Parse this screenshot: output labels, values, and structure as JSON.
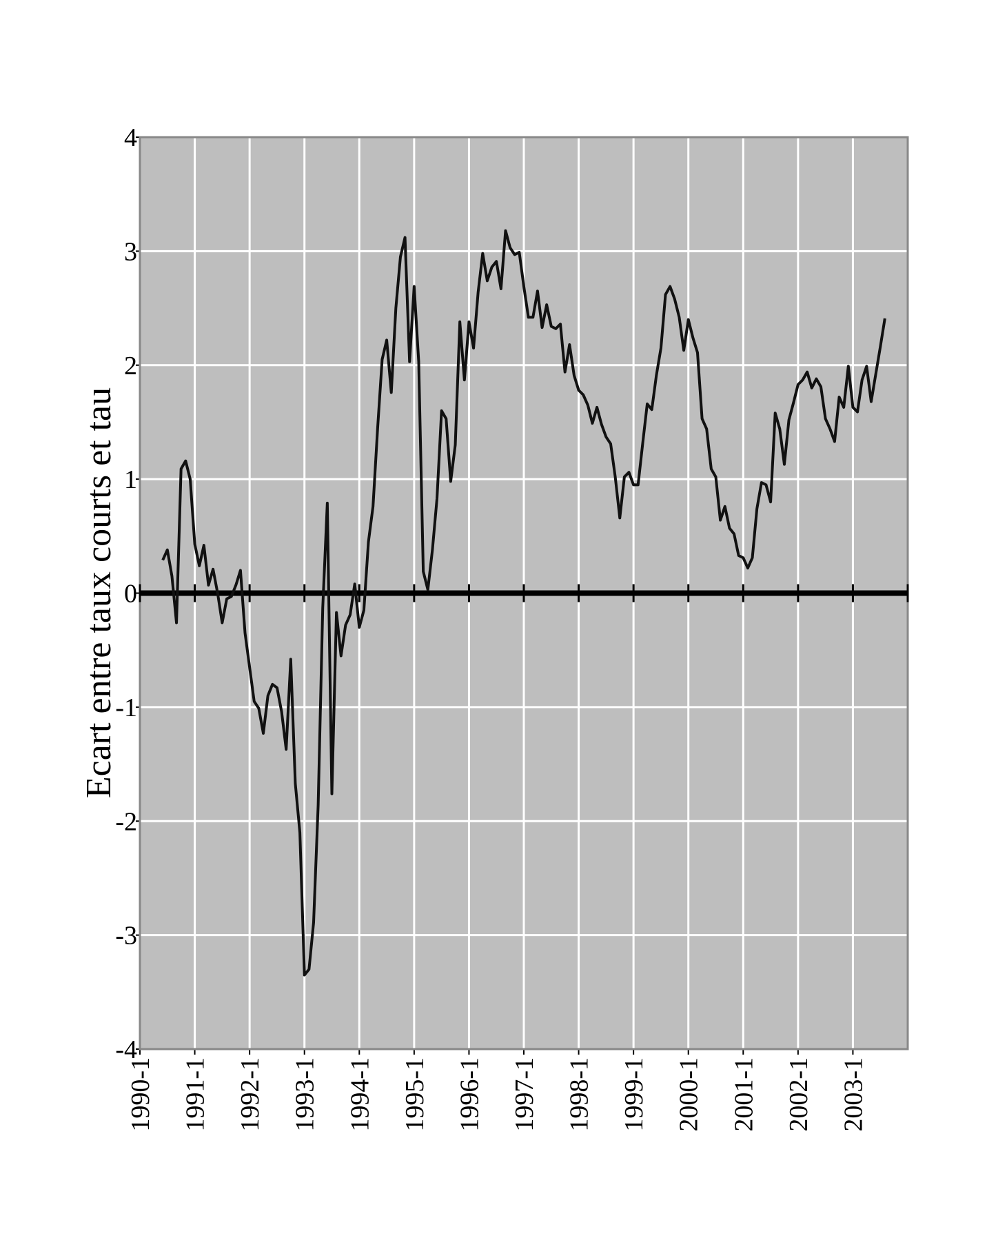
{
  "chart_data": {
    "type": "line",
    "y_label": "Ecart entre taux courts et tau",
    "x": [
      "1990-6",
      "1990-7",
      "1990-8",
      "1990-9",
      "1990-10",
      "1990-11",
      "1990-12",
      "1991-1",
      "1991-2",
      "1991-3",
      "1991-4",
      "1991-5",
      "1991-6",
      "1991-7",
      "1991-8",
      "1991-9",
      "1991-10",
      "1991-11",
      "1991-12",
      "1992-1",
      "1992-2",
      "1992-3",
      "1992-4",
      "1992-5",
      "1992-6",
      "1992-7",
      "1992-8",
      "1992-9",
      "1992-10",
      "1992-11",
      "1992-12",
      "1993-1",
      "1993-2",
      "1993-3",
      "1993-4",
      "1993-5",
      "1993-6",
      "1993-7",
      "1993-8",
      "1993-9",
      "1993-10",
      "1993-11",
      "1993-12",
      "1994-1",
      "1994-2",
      "1994-3",
      "1994-4",
      "1994-5",
      "1994-6",
      "1994-7",
      "1994-8",
      "1994-9",
      "1994-10",
      "1994-11",
      "1994-12",
      "1995-1",
      "1995-2",
      "1995-3",
      "1995-4",
      "1995-5",
      "1995-6",
      "1995-7",
      "1995-8",
      "1995-9",
      "1995-10",
      "1995-11",
      "1995-12",
      "1996-1",
      "1996-2",
      "1996-3",
      "1996-4",
      "1996-5",
      "1996-6",
      "1996-7",
      "1996-8",
      "1996-9",
      "1996-10",
      "1996-11",
      "1996-12",
      "1997-1",
      "1997-2",
      "1997-3",
      "1997-4",
      "1997-5",
      "1997-6",
      "1997-7",
      "1997-8",
      "1997-9",
      "1997-10",
      "1997-11",
      "1997-12",
      "1998-1",
      "1998-2",
      "1998-3",
      "1998-4",
      "1998-5",
      "1998-6",
      "1998-7",
      "1998-8",
      "1998-9",
      "1998-10",
      "1998-11",
      "1998-12",
      "1999-1",
      "1999-2",
      "1999-3",
      "1999-4",
      "1999-5",
      "1999-6",
      "1999-7",
      "1999-8",
      "1999-9",
      "1999-10",
      "1999-11",
      "1999-12",
      "2000-1",
      "2000-2",
      "2000-3",
      "2000-4",
      "2000-5",
      "2000-6",
      "2000-7",
      "2000-8",
      "2000-9",
      "2000-10",
      "2000-11",
      "2000-12",
      "2001-1",
      "2001-2",
      "2001-3",
      "2001-4",
      "2001-5",
      "2001-6",
      "2001-7",
      "2001-8",
      "2001-9",
      "2001-10",
      "2001-11",
      "2001-12",
      "2002-1",
      "2002-2",
      "2002-3",
      "2002-4",
      "2002-5",
      "2002-6",
      "2002-7",
      "2002-8",
      "2002-9",
      "2002-10",
      "2002-11",
      "2002-12",
      "2003-1",
      "2003-2",
      "2003-3",
      "2003-4",
      "2003-5",
      "2003-6",
      "2003-7",
      "2003-8"
    ],
    "series": [
      {
        "color": "#111111",
        "values": [
          0.29,
          0.38,
          0.15,
          -0.26,
          1.09,
          1.16,
          1.0,
          0.43,
          0.24,
          0.42,
          0.07,
          0.21,
          0.0,
          -0.26,
          -0.05,
          -0.03,
          0.07,
          0.2,
          -0.35,
          -0.65,
          -0.95,
          -1.01,
          -1.23,
          -0.9,
          -0.8,
          -0.83,
          -1.04,
          -1.37,
          -0.58,
          -1.67,
          -2.1,
          -3.35,
          -3.3,
          -2.89,
          -1.86,
          -0.13,
          0.79,
          -1.76,
          -0.17,
          -0.55,
          -0.28,
          -0.19,
          0.08,
          -0.3,
          -0.15,
          0.45,
          0.76,
          1.44,
          2.05,
          2.22,
          1.76,
          2.5,
          2.95,
          3.12,
          2.03,
          2.69,
          2.03,
          0.19,
          0.03,
          0.38,
          0.83,
          1.6,
          1.53,
          0.98,
          1.3,
          2.38,
          1.87,
          2.38,
          2.15,
          2.64,
          2.98,
          2.74,
          2.86,
          2.91,
          2.67,
          3.18,
          3.03,
          2.97,
          2.99,
          2.69,
          2.42,
          2.42,
          2.65,
          2.33,
          2.53,
          2.34,
          2.32,
          2.36,
          1.94,
          2.18,
          1.91,
          1.78,
          1.74,
          1.65,
          1.49,
          1.63,
          1.48,
          1.37,
          1.31,
          1.02,
          0.66,
          1.02,
          1.06,
          0.95,
          0.95,
          1.31,
          1.66,
          1.61,
          1.91,
          2.15,
          2.62,
          2.69,
          2.58,
          2.42,
          2.13,
          2.4,
          2.24,
          2.11,
          1.53,
          1.44,
          1.09,
          1.02,
          0.64,
          0.76,
          0.57,
          0.52,
          0.33,
          0.31,
          0.22,
          0.31,
          0.74,
          0.97,
          0.95,
          0.8,
          1.58,
          1.44,
          1.13,
          1.52,
          1.67,
          1.83,
          1.87,
          1.94,
          1.8,
          1.88,
          1.81,
          1.53,
          1.44,
          1.33,
          1.72,
          1.63,
          1.99,
          1.63,
          1.59,
          1.87,
          1.99,
          1.68,
          1.92,
          2.16,
          2.41
        ]
      }
    ],
    "xlim": [
      "1990-1",
      "2004-1"
    ],
    "xticks": [
      "1990-1",
      "1991-1",
      "1992-1",
      "1993-1",
      "1994-1",
      "1995-1",
      "1996-1",
      "1997-1",
      "1998-1",
      "1999-1",
      "2000-1",
      "2001-1",
      "2002-1",
      "2003-1"
    ],
    "ylim": [
      -4,
      4
    ],
    "yticks": [
      -4,
      -3,
      -2,
      -1,
      0,
      1,
      2,
      3,
      4
    ],
    "grid": true,
    "zero_line": true,
    "plot_background": "#bebebe"
  }
}
